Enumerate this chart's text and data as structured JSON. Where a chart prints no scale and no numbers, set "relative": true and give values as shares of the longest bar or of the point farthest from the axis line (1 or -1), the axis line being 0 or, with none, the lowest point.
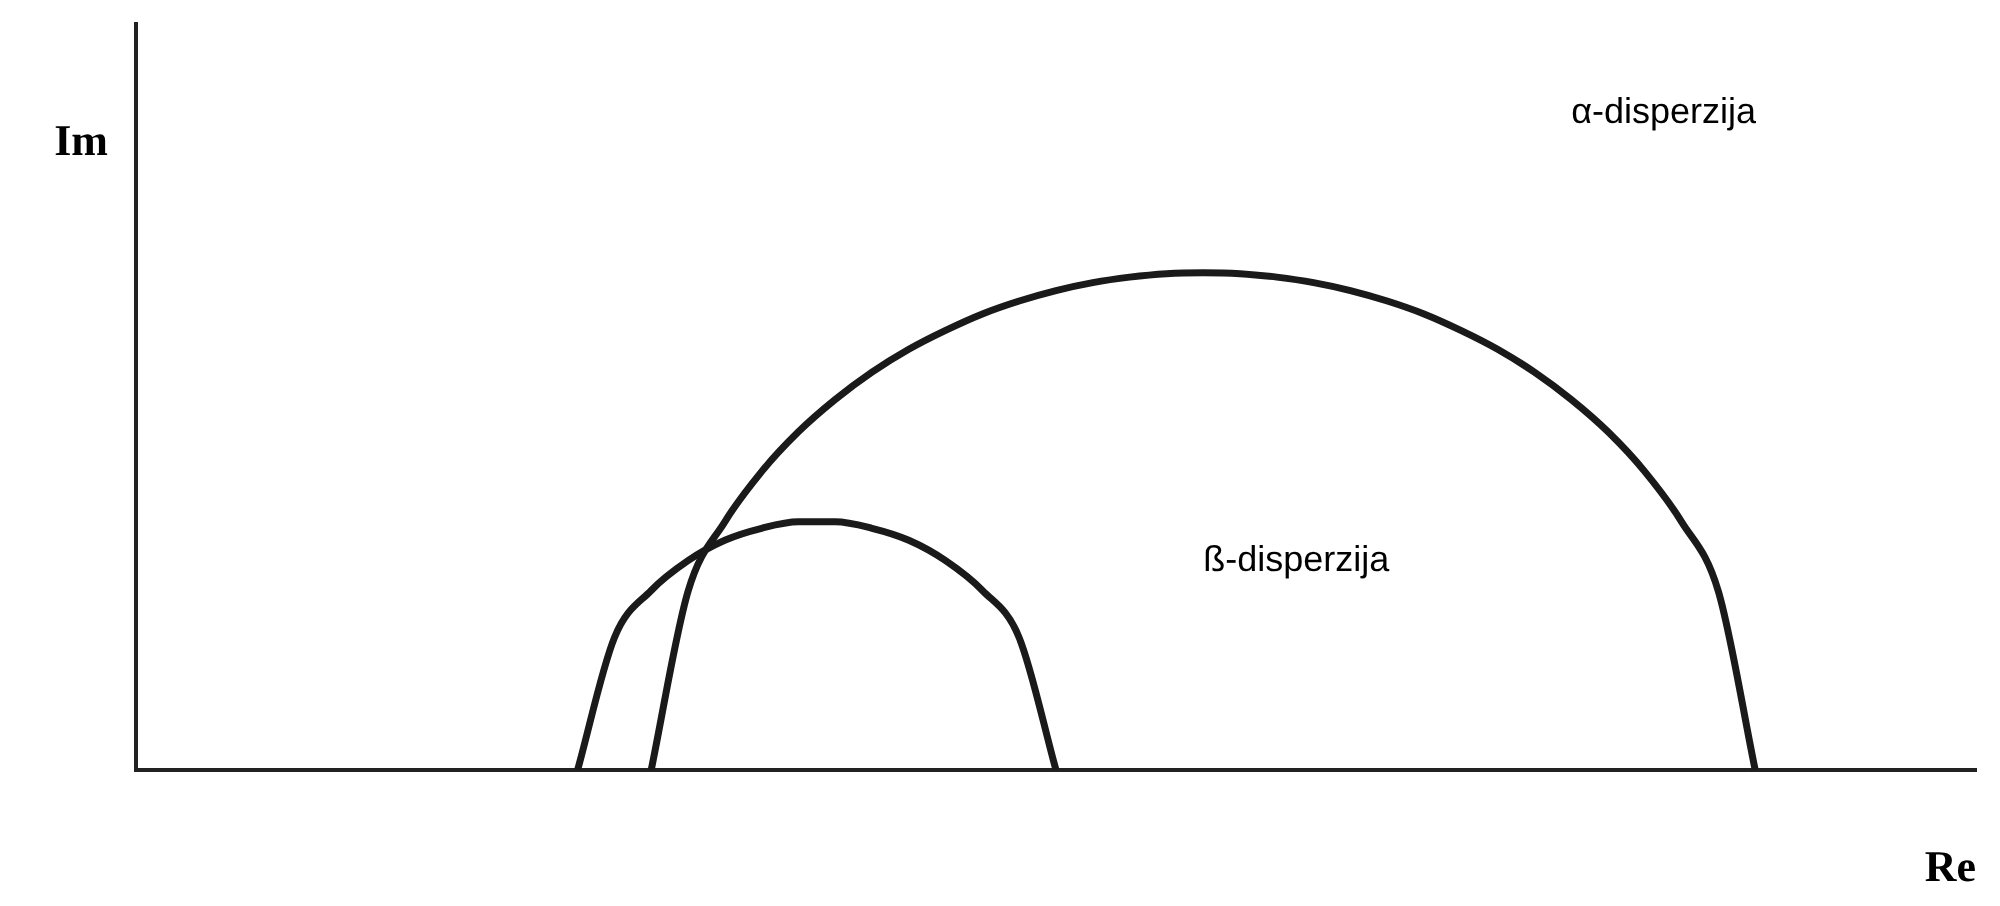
{
  "chart_data": {
    "type": "line",
    "relative": true,
    "xlabel": "Re",
    "ylabel": "Im",
    "categories": [
      null,
      null,
      null,
      null,
      null,
      null,
      null,
      null,
      null,
      null,
      null,
      null,
      null,
      null,
      null,
      null,
      null,
      null,
      null,
      null,
      null,
      null,
      null,
      null,
      null,
      null,
      null,
      null,
      null,
      null,
      null,
      null,
      null,
      null,
      null,
      null,
      null,
      null,
      null,
      null,
      null,
      null,
      null,
      null,
      null,
      null,
      null,
      null,
      null,
      null,
      null
    ],
    "series": [
      {
        "color": "#1a1a1a",
        "values": [
          null,
          null,
          null,
          null,
          null,
          null,
          null,
          null,
          null,
          null,
          null,
          null,
          null,
          null,
          0,
          0.359,
          0.499,
          0.6,
          0.68,
          0.745,
          0.8,
          0.846,
          0.884,
          0.917,
          0.943,
          0.964,
          0.98,
          0.991,
          0.998,
          1,
          0.998,
          0.991,
          0.98,
          0.964,
          0.943,
          0.917,
          0.884,
          0.846,
          0.8,
          0.745,
          0.68,
          0.6,
          0.499,
          0.359,
          0,
          null,
          null,
          null,
          null,
          null,
          null
        ]
      },
      {
        "color": "#1a1a1a",
        "values": [
          null,
          null,
          null,
          null,
          null,
          null,
          null,
          null,
          null,
          null,
          null,
          null,
          0,
          0.266,
          0.361,
          0.421,
          0.462,
          0.486,
          0.499,
          0.499,
          0.486,
          0.462,
          0.421,
          0.361,
          0.266,
          0,
          null,
          null,
          null,
          null,
          null,
          null,
          null,
          null,
          null,
          null,
          null,
          null,
          null,
          null,
          null,
          null,
          null,
          null,
          null,
          null,
          null,
          null,
          null,
          null,
          null
        ]
      }
    ],
    "annotations": [
      "α-disperzija",
      "ß-disperzija"
    ],
    "grid": false,
    "legend": false,
    "marker": "none",
    "line_style": "solid"
  }
}
